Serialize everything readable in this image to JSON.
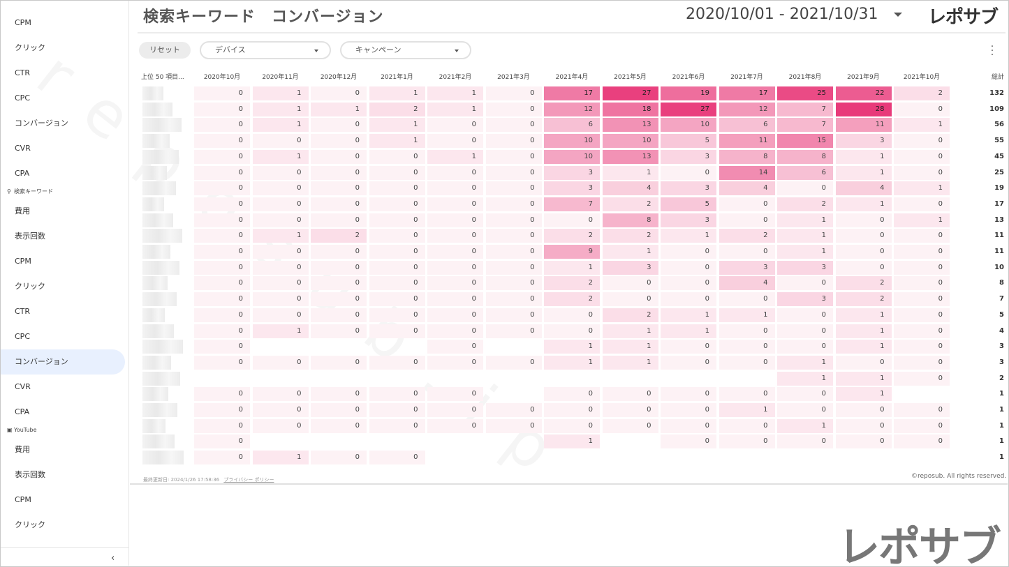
{
  "header": {
    "title": "検索キーワード　コンバージョン",
    "date_range": "2020/10/01 - 2021/10/31",
    "logo": "レポサブ"
  },
  "sidebar": {
    "items_top": [
      "CPM",
      "クリック",
      "CTR",
      "CPC",
      "コンバージョン",
      "CVR",
      "CPA"
    ],
    "section_keyword": {
      "icon": "search-icon",
      "label": "検索キーワード"
    },
    "items_keyword": [
      "費用",
      "表示回数",
      "CPM",
      "クリック",
      "CTR",
      "CPC",
      "コンバージョン",
      "CVR",
      "CPA"
    ],
    "active_item": "コンバージョン",
    "section_youtube": {
      "icon": "youtube-icon",
      "label": "YouTube"
    },
    "items_youtube": [
      "費用",
      "表示回数",
      "CPM",
      "クリック"
    ],
    "collapse_icon": "chevron-left-icon"
  },
  "filters": {
    "reset_label": "リセット",
    "device_label": "デバイス",
    "campaign_label": "キャンペーン"
  },
  "table": {
    "first_header": "上位 50 項目...",
    "months": [
      "2020年10月",
      "2020年11月",
      "2020年12月",
      "2021年1月",
      "2021年2月",
      "2021年3月",
      "2021年4月",
      "2021年5月",
      "2021年6月",
      "2021年7月",
      "2021年8月",
      "2021年9月",
      "2021年10月"
    ],
    "total_header": "総計",
    "max_value": 28,
    "rows": [
      {
        "values": [
          0,
          1,
          0,
          1,
          1,
          0,
          17,
          27,
          19,
          17,
          25,
          22,
          2
        ],
        "total": 132
      },
      {
        "values": [
          0,
          1,
          1,
          2,
          1,
          0,
          12,
          18,
          27,
          12,
          7,
          28,
          0
        ],
        "total": 109
      },
      {
        "values": [
          0,
          1,
          0,
          1,
          0,
          0,
          6,
          13,
          10,
          6,
          7,
          11,
          1
        ],
        "total": 56
      },
      {
        "values": [
          0,
          0,
          0,
          1,
          0,
          0,
          10,
          10,
          5,
          11,
          15,
          3,
          0
        ],
        "total": 55
      },
      {
        "values": [
          0,
          1,
          0,
          0,
          1,
          0,
          10,
          13,
          3,
          8,
          8,
          1,
          0
        ],
        "total": 45
      },
      {
        "values": [
          0,
          0,
          0,
          0,
          0,
          0,
          3,
          1,
          0,
          14,
          6,
          1,
          0
        ],
        "total": 25
      },
      {
        "values": [
          0,
          0,
          0,
          0,
          0,
          0,
          3,
          4,
          3,
          4,
          0,
          4,
          1
        ],
        "total": 19
      },
      {
        "values": [
          0,
          0,
          0,
          0,
          0,
          0,
          7,
          2,
          5,
          0,
          2,
          1,
          0
        ],
        "total": 17
      },
      {
        "values": [
          0,
          0,
          0,
          0,
          0,
          0,
          0,
          8,
          3,
          0,
          1,
          0,
          1
        ],
        "total": 13
      },
      {
        "values": [
          0,
          1,
          2,
          0,
          0,
          0,
          2,
          2,
          1,
          2,
          1,
          0,
          0
        ],
        "total": 11
      },
      {
        "values": [
          0,
          0,
          0,
          0,
          0,
          0,
          9,
          1,
          0,
          0,
          1,
          0,
          0
        ],
        "total": 11
      },
      {
        "values": [
          0,
          0,
          0,
          0,
          0,
          0,
          1,
          3,
          0,
          3,
          3,
          0,
          0
        ],
        "total": 10
      },
      {
        "values": [
          0,
          0,
          0,
          0,
          0,
          0,
          2,
          0,
          0,
          4,
          0,
          2,
          0
        ],
        "total": 8
      },
      {
        "values": [
          0,
          0,
          0,
          0,
          0,
          0,
          2,
          0,
          0,
          0,
          3,
          2,
          0
        ],
        "total": 7
      },
      {
        "values": [
          0,
          0,
          0,
          0,
          0,
          0,
          0,
          2,
          1,
          1,
          0,
          1,
          0
        ],
        "total": 5
      },
      {
        "values": [
          0,
          1,
          0,
          0,
          0,
          0,
          0,
          1,
          1,
          0,
          0,
          1,
          0
        ],
        "total": 4
      },
      {
        "values": [
          0,
          null,
          null,
          null,
          0,
          null,
          1,
          1,
          0,
          0,
          0,
          1,
          0
        ],
        "total": 3
      },
      {
        "values": [
          0,
          0,
          0,
          0,
          0,
          0,
          1,
          1,
          0,
          0,
          1,
          0,
          0
        ],
        "total": 3
      },
      {
        "values": [
          null,
          null,
          null,
          null,
          null,
          null,
          null,
          null,
          null,
          null,
          1,
          1,
          0
        ],
        "total": 2
      },
      {
        "values": [
          0,
          0,
          0,
          0,
          0,
          null,
          0,
          0,
          0,
          0,
          0,
          1,
          null
        ],
        "total": 1
      },
      {
        "values": [
          0,
          0,
          0,
          0,
          0,
          0,
          0,
          0,
          0,
          1,
          0,
          0,
          0
        ],
        "total": 1
      },
      {
        "values": [
          0,
          0,
          0,
          0,
          0,
          0,
          0,
          0,
          0,
          0,
          1,
          0,
          0
        ],
        "total": 1
      },
      {
        "values": [
          0,
          null,
          null,
          null,
          null,
          null,
          1,
          null,
          0,
          0,
          0,
          0,
          0
        ],
        "total": 1
      },
      {
        "values": [
          0,
          1,
          0,
          0,
          null,
          null,
          null,
          null,
          null,
          null,
          null,
          null,
          null
        ],
        "total": 1
      }
    ]
  },
  "footer": {
    "updated": "最終更新日: 2024/1/26 17:58:36",
    "privacy": "プライバシー ポリシー",
    "copyright": "©reposub. All rights reserved."
  },
  "watermark": "reposub.jp",
  "logo_bottom": "レポサブ",
  "colors": {
    "heat_max": "#e83a7a",
    "heat_min": "#fdf2f5",
    "active_bg": "#e8f0fe"
  }
}
